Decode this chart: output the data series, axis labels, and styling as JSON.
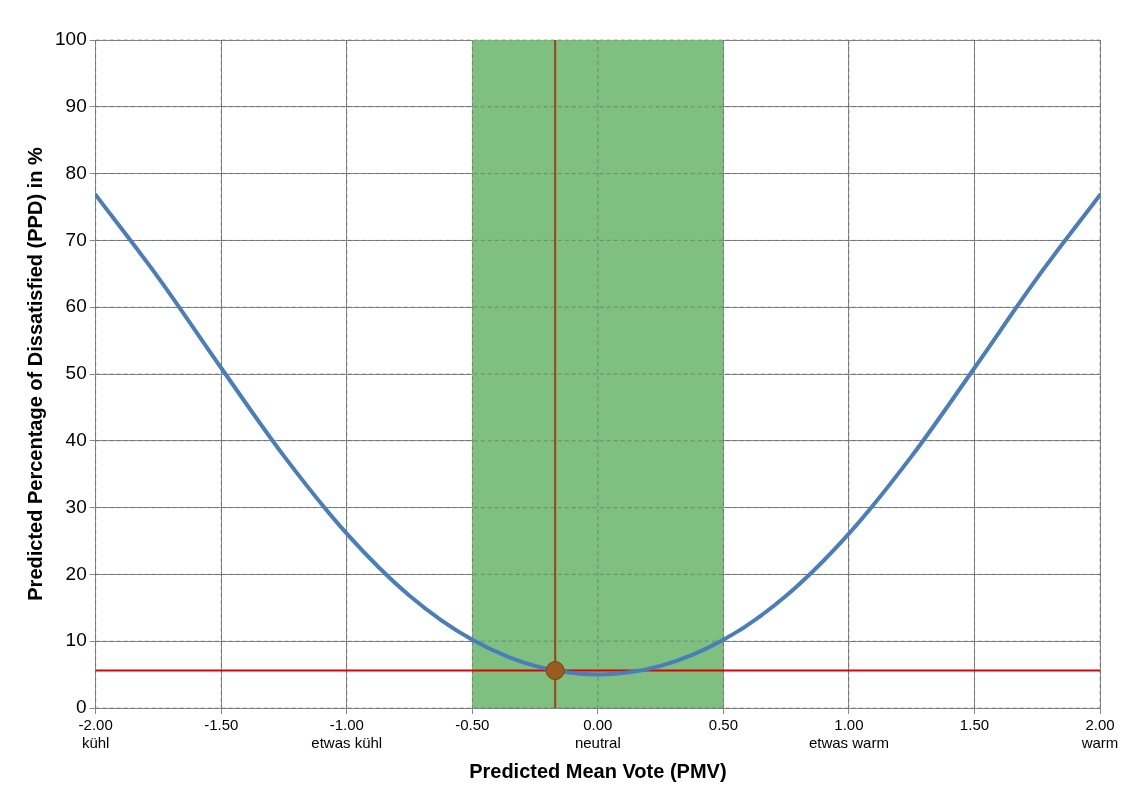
{
  "chart_data": {
    "type": "line",
    "xlabel": "Predicted Mean Vote (PMV)",
    "ylabel": "Predicted Percentage of Dissatisfied (PPD) in %",
    "xlim": [
      -2,
      2
    ],
    "ylim": [
      0,
      100
    ],
    "xticks": [
      {
        "value": -2,
        "label": "-2.00\nkühl"
      },
      {
        "value": -1.5,
        "label": "-1.50"
      },
      {
        "value": -1,
        "label": "-1.00\netwas kühl"
      },
      {
        "value": -0.5,
        "label": "-0.50"
      },
      {
        "value": 0,
        "label": "0.00\nneutral"
      },
      {
        "value": 0.5,
        "label": "0.50"
      },
      {
        "value": 1,
        "label": "1.00\netwas warm"
      },
      {
        "value": 1.5,
        "label": "1.50"
      },
      {
        "value": 2,
        "label": "2.00\nwarm"
      }
    ],
    "yticks": [
      0,
      10,
      20,
      30,
      40,
      50,
      60,
      70,
      80,
      90,
      100
    ],
    "grid": true,
    "marker": "none",
    "series": [
      {
        "color": "#4a7ebb",
        "x": [
          -2,
          -1.75,
          -1.5,
          -1.25,
          -1,
          -0.75,
          -0.5,
          -0.25,
          0,
          0.25,
          0.5,
          0.75,
          1,
          1.25,
          1.5,
          1.75,
          2
        ],
        "values": [
          76.8,
          64.4,
          50.9,
          37.7,
          26.1,
          16.8,
          10.2,
          6.3,
          5,
          6.3,
          10.2,
          16.8,
          26.1,
          37.7,
          50.9,
          64.4,
          76.8
        ]
      },
      {
        "type": "scatter",
        "color": "#9c5b1e",
        "marker": "circle",
        "x": [
          -0.17
        ],
        "values": [
          5.6
        ]
      }
    ],
    "bands": [
      {
        "axis": "x",
        "from": -0.5,
        "to": 0.5,
        "color": "#7fbf7f"
      }
    ],
    "ref_lines": [
      {
        "axis": "y",
        "value": 5.6,
        "color": "#e00000"
      },
      {
        "axis": "x",
        "value": -0.17,
        "color": "#a0401a"
      }
    ]
  }
}
